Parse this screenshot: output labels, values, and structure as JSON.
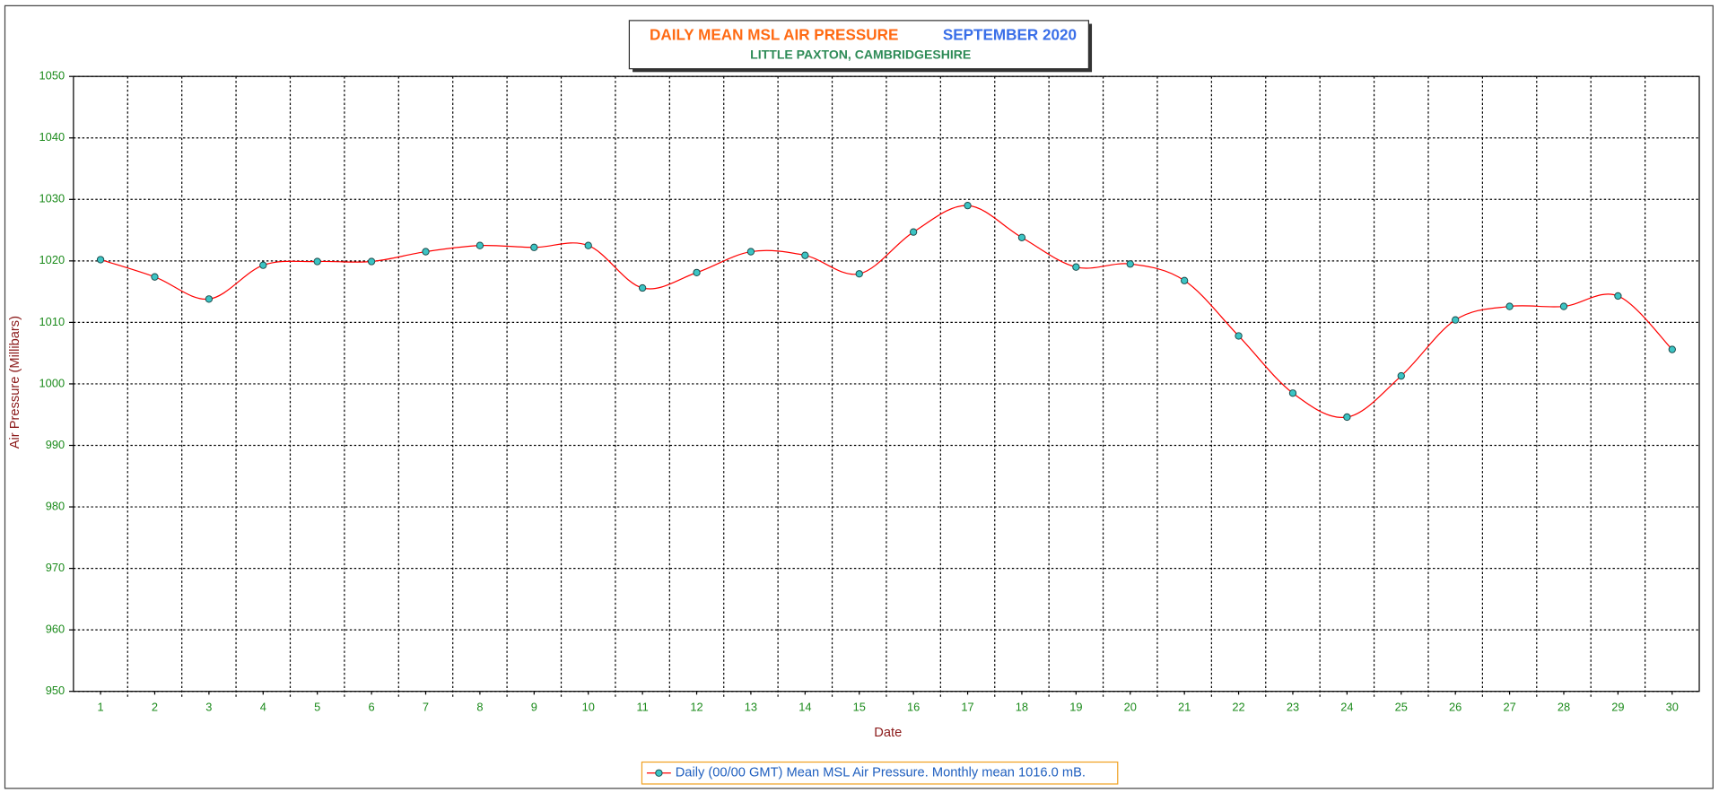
{
  "chart_data": {
    "type": "line",
    "title": "DAILY MEAN MSL AIR PRESSURE",
    "title_period": "SEPTEMBER 2020",
    "subtitle": "LITTLE PAXTON, CAMBRIDGESHIRE",
    "x_label": "Date",
    "y_label": "Air Pressure (Millibars)",
    "x": [
      1,
      2,
      3,
      4,
      5,
      6,
      7,
      8,
      9,
      10,
      11,
      12,
      13,
      14,
      15,
      16,
      17,
      18,
      19,
      20,
      21,
      22,
      23,
      24,
      25,
      26,
      27,
      28,
      29,
      30
    ],
    "xlim": [
      0.5,
      30.5
    ],
    "xticks": [
      1,
      2,
      3,
      4,
      5,
      6,
      7,
      8,
      9,
      10,
      11,
      12,
      13,
      14,
      15,
      16,
      17,
      18,
      19,
      20,
      21,
      22,
      23,
      24,
      25,
      26,
      27,
      28,
      29,
      30
    ],
    "ylim": [
      950,
      1050
    ],
    "yticks": [
      950,
      960,
      970,
      980,
      990,
      1000,
      1010,
      1020,
      1030,
      1040,
      1050
    ],
    "grid": true,
    "smooth": true,
    "legend": "bottom",
    "series": [
      {
        "name": "Daily (00/00 GMT) Mean MSL Air Pressure. Monthly mean 1016.0 mB.",
        "color": "#ff0000",
        "marker_color": "#3cc4c4",
        "values": [
          1020.2,
          1017.4,
          1013.8,
          1019.3,
          1019.9,
          1019.9,
          1021.5,
          1022.5,
          1022.2,
          1022.5,
          1015.6,
          1018.1,
          1021.5,
          1020.9,
          1017.9,
          1024.7,
          1029.0,
          1023.8,
          1019.0,
          1019.5,
          1016.8,
          1007.8,
          998.5,
          994.6,
          1001.3,
          1010.4,
          1012.6,
          1012.6,
          1014.3,
          1005.6
        ]
      }
    ]
  }
}
